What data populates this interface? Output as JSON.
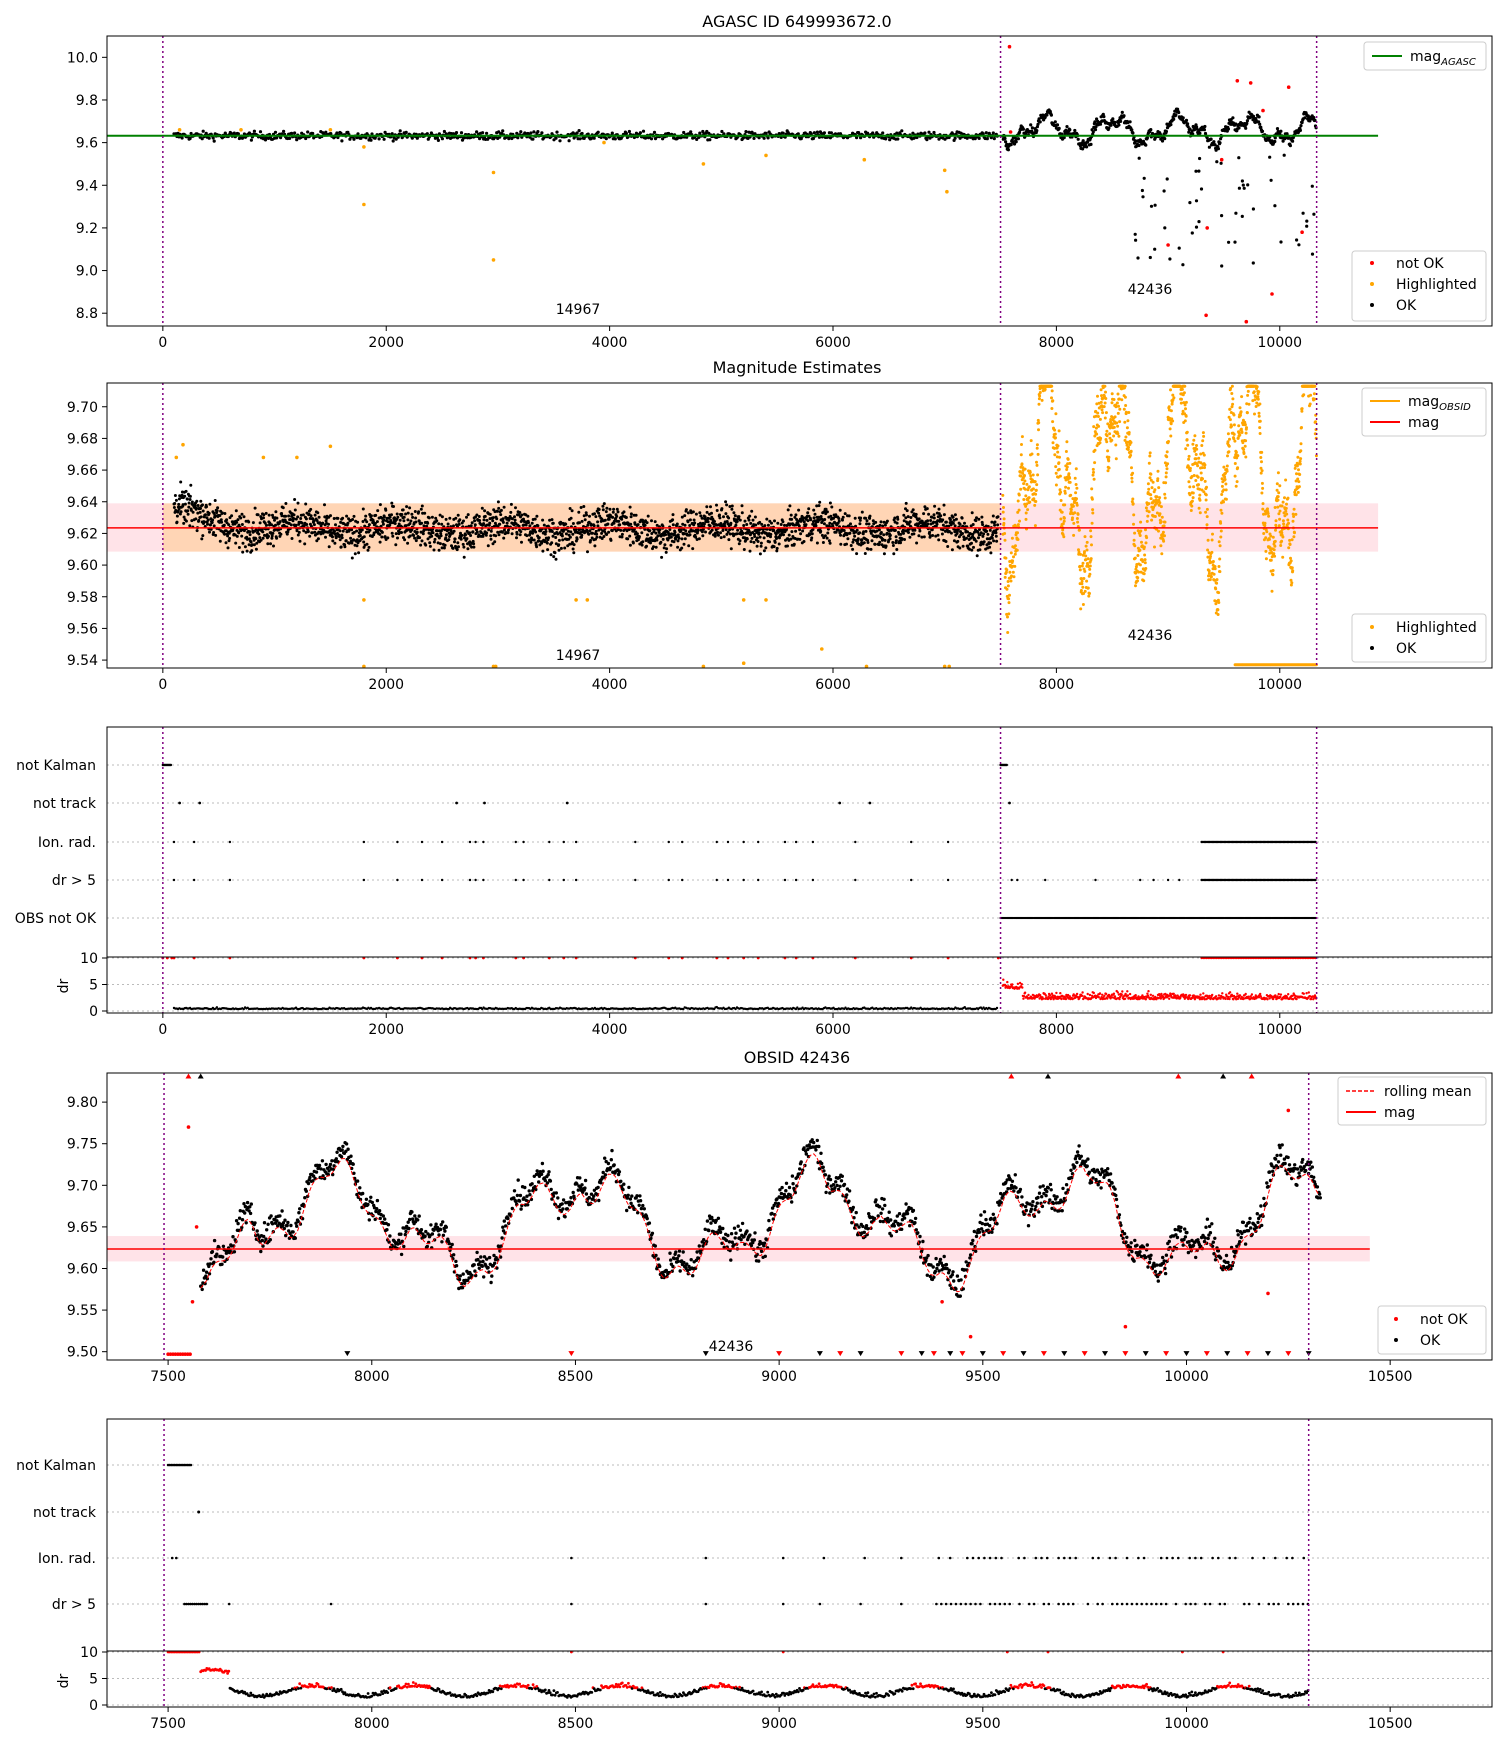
{
  "chart_data": [
    {
      "type": "scatter",
      "title": "AGASC ID 649993672.0",
      "xlim": [
        -500,
        11900
      ],
      "ylim": [
        8.74,
        10.1
      ],
      "xticks": [
        "0",
        "2000",
        "4000",
        "6000",
        "8000",
        "10000"
      ],
      "yticks": [
        "8.8",
        "9.0",
        "9.2",
        "9.4",
        "9.6",
        "9.8",
        "10.0"
      ],
      "mag_agasc": 9.632,
      "obs_boundaries": [
        0,
        7500,
        10330
      ],
      "obs_labels": [
        "14967",
        "42436"
      ],
      "legend_top": [
        "mag_AGASC"
      ],
      "legend_bottom": [
        "not OK",
        "Highlighted",
        "OK"
      ],
      "colors": {
        "ok": "#000000",
        "highlighted": "#ffa500",
        "not_ok": "#ff0000",
        "mag_agasc": "#008000",
        "boundary": "#800080"
      }
    },
    {
      "type": "scatter",
      "title": "Magnitude Estimates",
      "xlim": [
        -500,
        11900
      ],
      "ylim": [
        9.535,
        9.715
      ],
      "xticks": [
        "0",
        "2000",
        "4000",
        "6000",
        "8000",
        "10000"
      ],
      "yticks": [
        "9.54",
        "9.56",
        "9.58",
        "9.60",
        "9.62",
        "9.64",
        "9.66",
        "9.68",
        "9.70"
      ],
      "mag": 9.6235,
      "mag_band": [
        9.6085,
        9.639
      ],
      "obs_labels": [
        "14967",
        "42436"
      ],
      "legend_top": [
        "mag_OBSID",
        "mag"
      ],
      "legend_bottom": [
        "Highlighted",
        "OK"
      ],
      "colors": {
        "mag_obsid": "#ffa500",
        "mag": "#ff0000",
        "band": "#ffc0cb"
      }
    },
    {
      "type": "scatter",
      "title": "",
      "categories": [
        "not Kalman",
        "not track",
        "Ion. rad.",
        "dr > 5",
        "OBS not OK"
      ],
      "xlim": [
        -500,
        11900
      ],
      "dr_ylabel": "dr",
      "dr_yticks": [
        "0",
        "5",
        "10"
      ],
      "xticks": [
        "0",
        "2000",
        "4000",
        "6000",
        "8000",
        "10000"
      ]
    },
    {
      "type": "scatter",
      "title": "OBSID 42436",
      "xlim": [
        7350,
        10750
      ],
      "ylim": [
        9.49,
        9.835
      ],
      "xticks": [
        "7500",
        "8000",
        "8500",
        "9000",
        "9500",
        "10000",
        "10500"
      ],
      "yticks": [
        "9.50",
        "9.55",
        "9.60",
        "9.65",
        "9.70",
        "9.75",
        "9.80"
      ],
      "mag": 9.6235,
      "mag_band": [
        9.6085,
        9.639
      ],
      "obs_label": "42436",
      "legend_top": [
        "rolling mean",
        "mag"
      ],
      "legend_bottom": [
        "not OK",
        "OK"
      ]
    },
    {
      "type": "scatter",
      "title": "",
      "categories": [
        "not Kalman",
        "not track",
        "Ion. rad.",
        "dr > 5"
      ],
      "xlim": [
        7350,
        10750
      ],
      "dr_ylabel": "dr",
      "dr_yticks": [
        "0",
        "5",
        "10"
      ],
      "xticks": [
        "7500",
        "8000",
        "8500",
        "9000",
        "9500",
        "10000",
        "10500"
      ]
    }
  ]
}
